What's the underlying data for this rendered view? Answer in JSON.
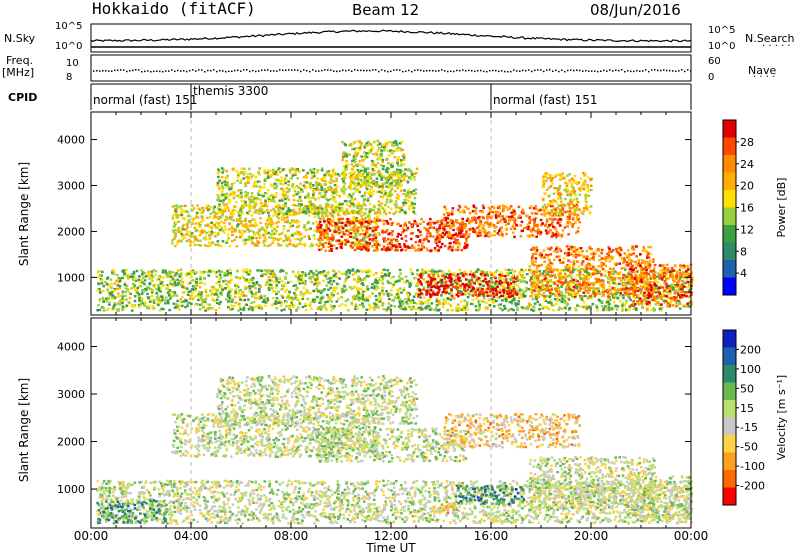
{
  "header": {
    "station": "Hokkaido (fitACF)",
    "beam": "Beam 12",
    "date": "08/Jun/2016"
  },
  "strips": {
    "nsky_label": "N.Sky",
    "freq_label": "Freq.",
    "freq_unit": "[MHz]",
    "cpid_label": "CPID",
    "nsearch_label": "N.Search",
    "nave_label": "Nave",
    "nsky_ticks": [
      "10^5",
      "10^0"
    ],
    "nsearch_ticks": [
      "10^5",
      "10^0"
    ],
    "freq_ticks": [
      "10",
      "8"
    ],
    "nave_ticks": [
      "60",
      "0"
    ],
    "cpid_segments": [
      {
        "text": "normal (fast) 151",
        "start_hour": 0
      },
      {
        "text": "themis 3300",
        "start_hour": 4
      },
      {
        "text": "normal (fast) 151",
        "start_hour": 16
      }
    ]
  },
  "axes": {
    "xlabel": "Time UT",
    "ylabel": "Slant Range [km]",
    "xticks": [
      "00:00",
      "04:00",
      "08:00",
      "12:00",
      "16:00",
      "20:00",
      "00:00"
    ],
    "yticks": [
      "1000",
      "2000",
      "3000",
      "4000"
    ],
    "xlim_hours": [
      0,
      24
    ],
    "ylim_km": [
      180,
      4600
    ]
  },
  "chart_data": [
    {
      "type": "heatmap",
      "title": "",
      "xlabel": "Time UT",
      "ylabel": "Slant Range [km]",
      "colorbar_label": "Power [dB]",
      "colorbar_ticks": [
        "28",
        "24",
        "20",
        "16",
        "12",
        "8",
        "4"
      ],
      "colorbar_colors": [
        "#e00000",
        "#ff4a00",
        "#ff8c00",
        "#ffb000",
        "#ffe000",
        "#9ad040",
        "#3aa040",
        "#2f8a6a",
        "#1f5fb0",
        "#0000ff"
      ],
      "regions": [
        {
          "t0": 0.2,
          "t1": 24,
          "r0": 300,
          "r1": 1200,
          "level": 0.45
        },
        {
          "t0": 3.2,
          "t1": 11.5,
          "r0": 1700,
          "r1": 2600,
          "level": 0.55
        },
        {
          "t0": 5,
          "t1": 13,
          "r0": 2400,
          "r1": 3400,
          "level": 0.5
        },
        {
          "t0": 9,
          "t1": 15,
          "r0": 1600,
          "r1": 2300,
          "level": 0.85
        },
        {
          "t0": 14,
          "t1": 19.5,
          "r0": 1900,
          "r1": 2600,
          "level": 0.8
        },
        {
          "t0": 13,
          "t1": 17,
          "r0": 600,
          "r1": 1100,
          "level": 0.95
        },
        {
          "t0": 17.5,
          "t1": 22.5,
          "r0": 600,
          "r1": 1700,
          "level": 0.75
        },
        {
          "t0": 21.5,
          "t1": 24,
          "r0": 400,
          "r1": 1300,
          "level": 0.8
        },
        {
          "t0": 10,
          "t1": 12.5,
          "r0": 3000,
          "r1": 4000,
          "level": 0.5
        },
        {
          "t0": 18,
          "t1": 20,
          "r0": 2400,
          "r1": 3300,
          "level": 0.6
        }
      ]
    },
    {
      "type": "heatmap",
      "title": "",
      "xlabel": "Time UT",
      "ylabel": "Slant Range [km]",
      "colorbar_label": "Velocity [m s⁻¹]",
      "colorbar_ticks": [
        "200",
        "100",
        "50",
        "15",
        "-15",
        "-50",
        "-100",
        "-200"
      ],
      "colorbar_colors": [
        "#1020c0",
        "#1f5fb0",
        "#2f8a6a",
        "#6ab850",
        "#b8e070",
        "#c8c8c8",
        "#ffd24a",
        "#ffa020",
        "#ff6a00",
        "#ff0000"
      ],
      "regions": [
        {
          "t0": 0.2,
          "t1": 24,
          "r0": 300,
          "r1": 1200,
          "level": 0.5
        },
        {
          "t0": 3.2,
          "t1": 11.5,
          "r0": 1700,
          "r1": 2600,
          "level": 0.5
        },
        {
          "t0": 5,
          "t1": 13,
          "r0": 2400,
          "r1": 3400,
          "level": 0.5
        },
        {
          "t0": 9,
          "t1": 15,
          "r0": 1600,
          "r1": 2300,
          "level": 0.5
        },
        {
          "t0": 14,
          "t1": 19.5,
          "r0": 1900,
          "r1": 2600,
          "level": 0.35
        },
        {
          "t0": 14.5,
          "t1": 17.3,
          "r0": 700,
          "r1": 1100,
          "level": 0.75
        },
        {
          "t0": 13.5,
          "t1": 14.5,
          "r0": 500,
          "r1": 700,
          "level": 0.35
        },
        {
          "t0": 17.5,
          "t1": 22.5,
          "r0": 600,
          "r1": 1700,
          "level": 0.5
        },
        {
          "t0": 21.5,
          "t1": 24,
          "r0": 400,
          "r1": 1300,
          "level": 0.5
        },
        {
          "t0": 0.2,
          "t1": 3,
          "r0": 300,
          "r1": 800,
          "level": 0.7
        }
      ]
    }
  ]
}
